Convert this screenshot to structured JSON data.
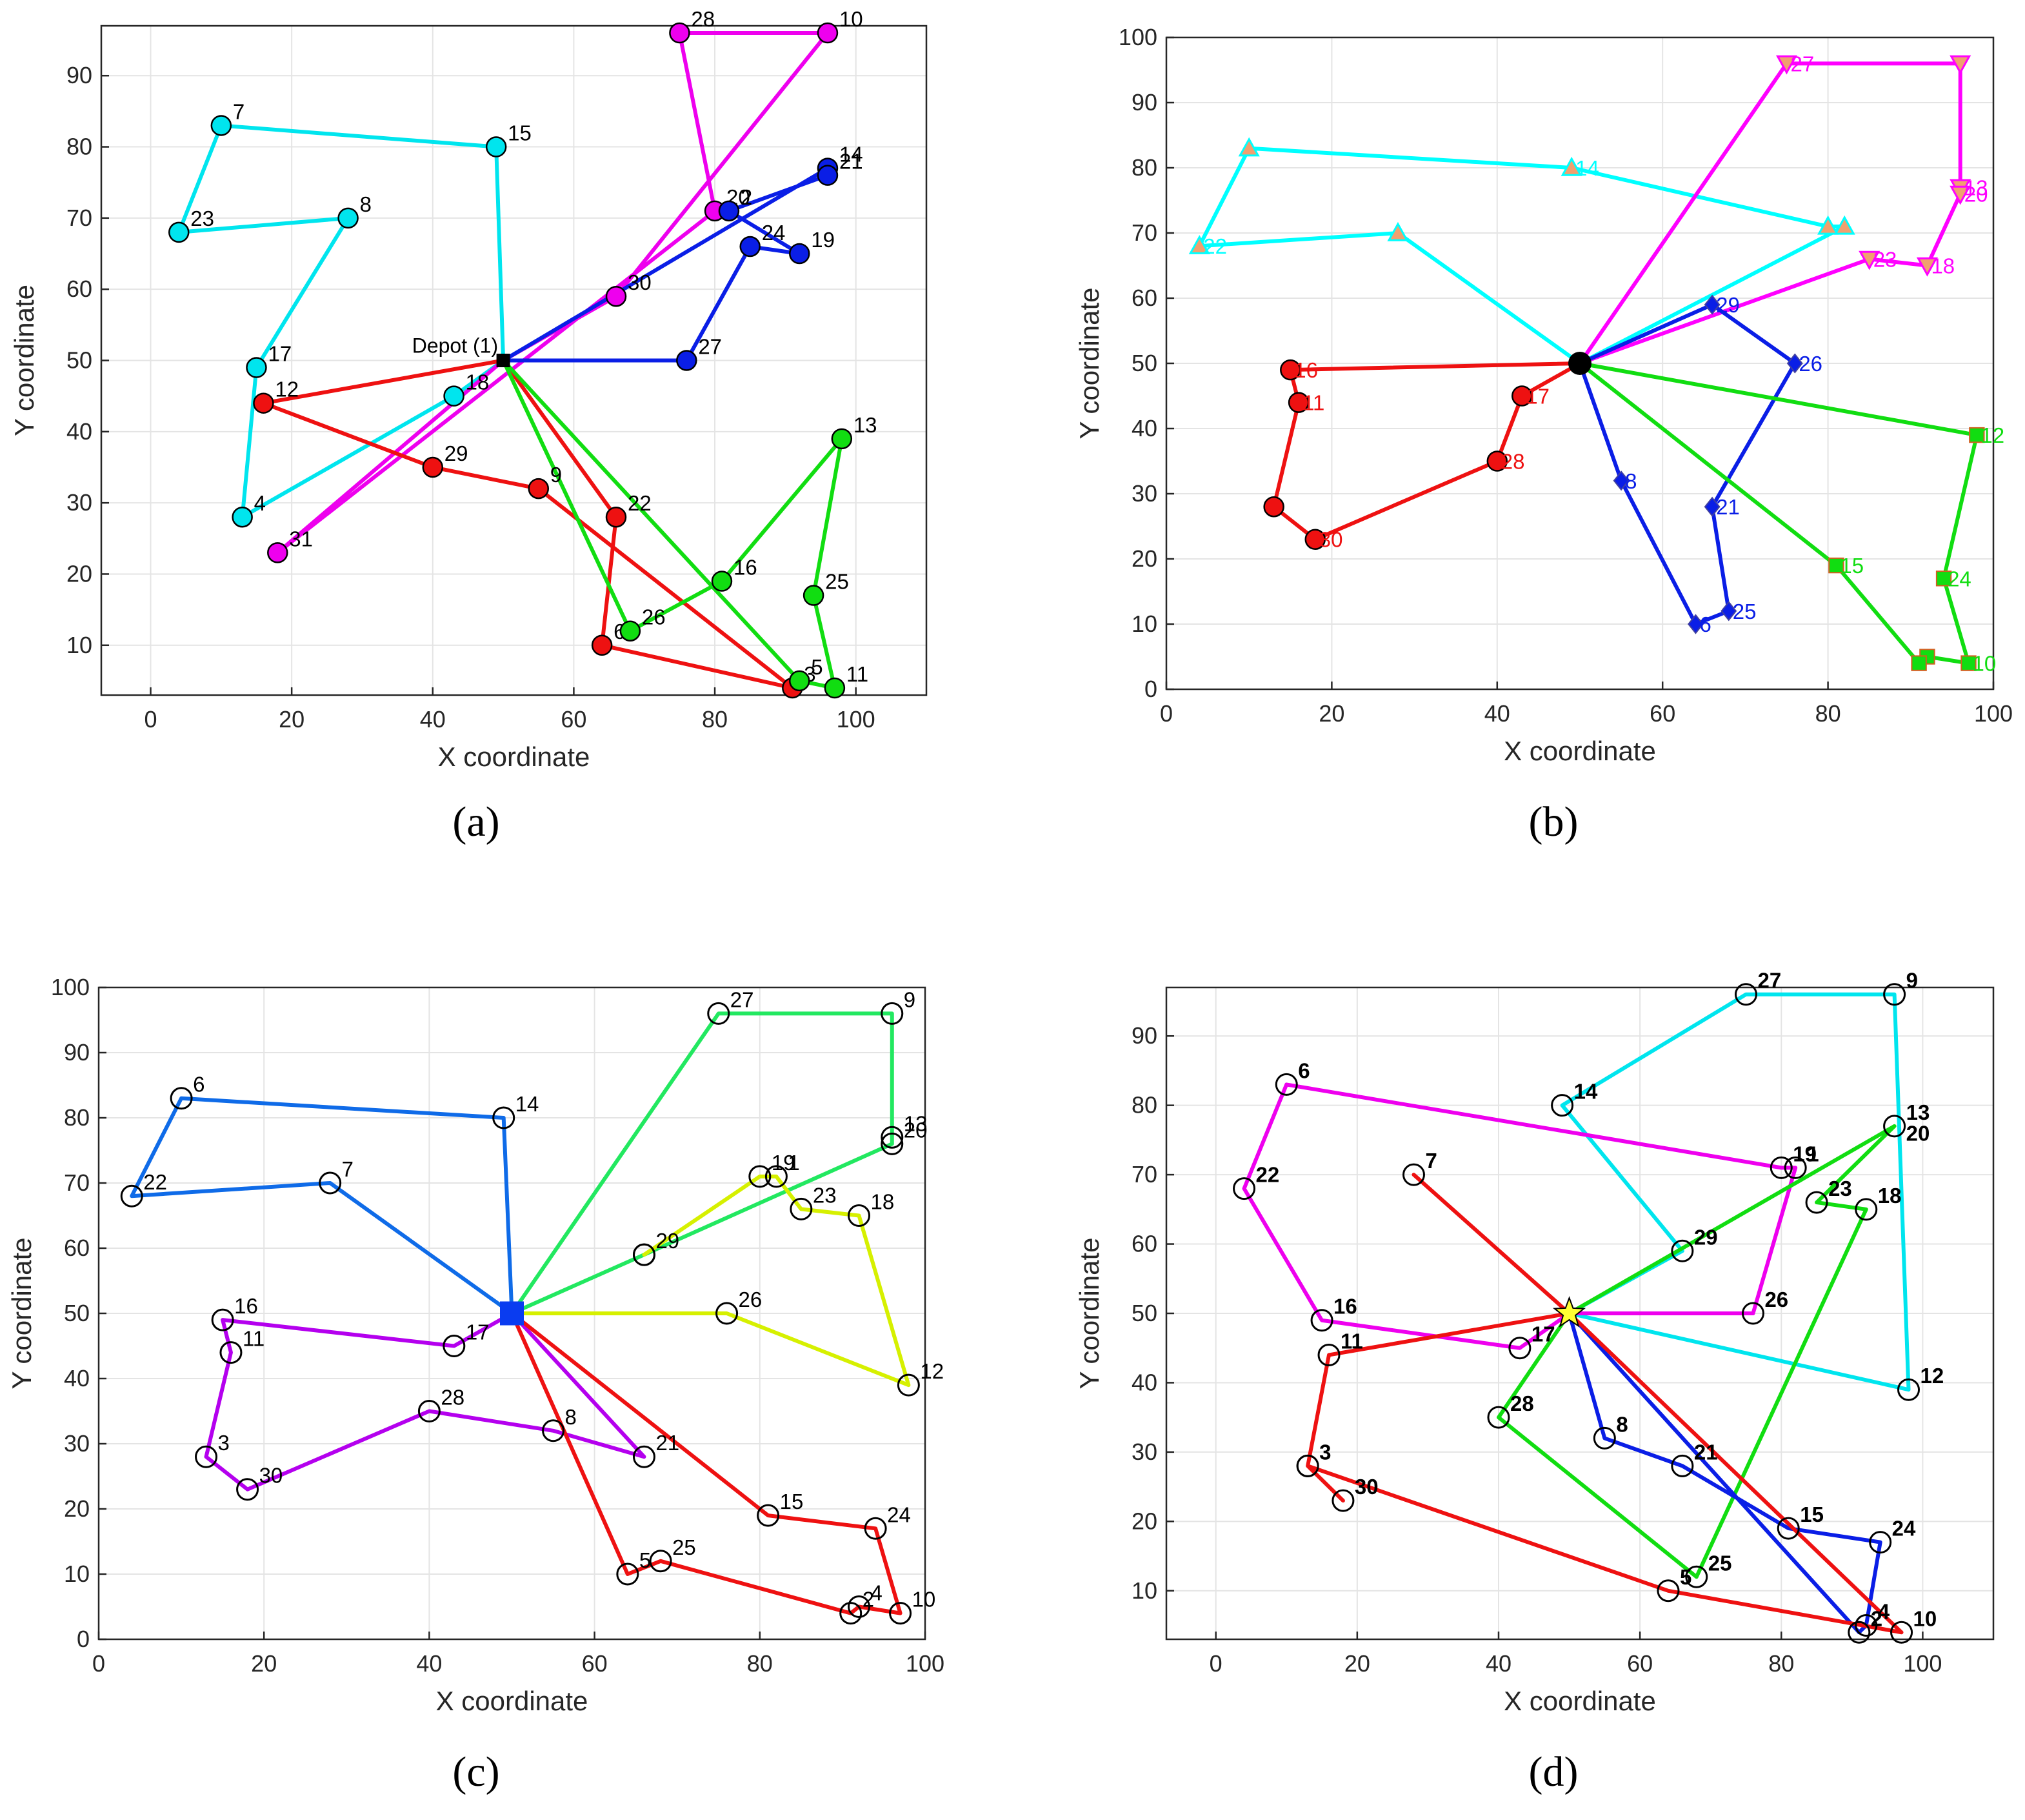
{
  "chart_data": [
    {
      "type": "line",
      "caption": "(a)",
      "xlabel": "X coordinate",
      "ylabel": "Y coordinate",
      "xlim": [
        -7,
        110
      ],
      "ylim": [
        3,
        97
      ],
      "xticks": [
        0,
        20,
        40,
        60,
        80,
        100
      ],
      "yticks": [
        10,
        20,
        30,
        40,
        50,
        60,
        70,
        80,
        90
      ],
      "grid": true,
      "marker": "circle",
      "depot": {
        "x": 50,
        "y": 50,
        "label": "Depot (1)",
        "marker": "square"
      },
      "routes": [
        {
          "color": "#00e5ee",
          "points": [
            [
              50,
              50
            ],
            [
              43,
              45
            ],
            [
              13,
              28
            ],
            [
              15,
              49
            ],
            [
              28,
              70
            ],
            [
              4,
              68
            ],
            [
              10,
              83
            ],
            [
              49,
              80
            ],
            [
              50,
              50
            ]
          ],
          "labels": [
            "",
            "18",
            "4",
            "17",
            "8",
            "23",
            "7",
            "15",
            ""
          ]
        },
        {
          "color": "#ee00ee",
          "points": [
            [
              50,
              50
            ],
            [
              66,
              59
            ],
            [
              96,
              96
            ],
            [
              75,
              96
            ],
            [
              80,
              71
            ],
            [
              18,
              23
            ],
            [
              50,
              50
            ]
          ],
          "labels": [
            "",
            "30",
            "10",
            "28",
            "20",
            "31",
            ""
          ]
        },
        {
          "color": "#0a1ee6",
          "points": [
            [
              50,
              50
            ],
            [
              96,
              77
            ],
            [
              96,
              76
            ],
            [
              82,
              71
            ],
            [
              92,
              65
            ],
            [
              85,
              66
            ],
            [
              76,
              50
            ],
            [
              50,
              50
            ]
          ],
          "labels": [
            "",
            "14",
            "21",
            "2",
            "19",
            "24",
            "27",
            ""
          ]
        },
        {
          "color": "#ee1111",
          "points": [
            [
              50,
              50
            ],
            [
              16,
              44
            ],
            [
              40,
              35
            ],
            [
              55,
              32
            ],
            [
              91,
              4
            ],
            [
              64,
              10
            ],
            [
              66,
              28
            ],
            [
              50,
              50
            ]
          ],
          "labels": [
            "",
            "12",
            "29",
            "9",
            "3",
            "6",
            "22",
            ""
          ]
        },
        {
          "color": "#11dd11",
          "points": [
            [
              50,
              50
            ],
            [
              92,
              5
            ],
            [
              97,
              4
            ],
            [
              94,
              17
            ],
            [
              98,
              39
            ],
            [
              81,
              19
            ],
            [
              68,
              12
            ],
            [
              50,
              50
            ]
          ],
          "labels": [
            "",
            "5",
            "11",
            "25",
            "13",
            "16",
            "26",
            ""
          ]
        }
      ]
    },
    {
      "type": "line",
      "caption": "(b)",
      "xlabel": "X coordinate",
      "ylabel": "Y coordinate",
      "xlim": [
        0,
        100
      ],
      "ylim": [
        0,
        100
      ],
      "xticks": [
        0,
        20,
        40,
        60,
        80,
        100
      ],
      "yticks": [
        0,
        10,
        20,
        30,
        40,
        50,
        60,
        70,
        80,
        90,
        100
      ],
      "grid": true,
      "depot": {
        "x": 50,
        "y": 50,
        "label": "",
        "marker": "circle"
      },
      "routes": [
        {
          "color": "#00ffff",
          "marker": "triangle",
          "points": [
            [
              50,
              50
            ],
            [
              82,
              71
            ],
            [
              80,
              71
            ],
            [
              49,
              80
            ],
            [
              10,
              83
            ],
            [
              4,
              68
            ],
            [
              28,
              70
            ],
            [
              50,
              50
            ]
          ],
          "labels": [
            "",
            "",
            "",
            "14",
            "",
            "22",
            "",
            ""
          ]
        },
        {
          "color": "#ff00ff",
          "marker": "down-triangle",
          "points": [
            [
              50,
              50
            ],
            [
              75,
              96
            ],
            [
              96,
              96
            ],
            [
              96,
              77
            ],
            [
              96,
              76
            ],
            [
              92,
              65
            ],
            [
              85,
              66
            ],
            [
              50,
              50
            ]
          ],
          "labels": [
            "",
            "27",
            "",
            "13",
            "20",
            "18",
            "23",
            ""
          ]
        },
        {
          "color": "#0a1ee6",
          "marker": "diamond",
          "points": [
            [
              50,
              50
            ],
            [
              66,
              59
            ],
            [
              76,
              50
            ],
            [
              66,
              28
            ],
            [
              68,
              12
            ],
            [
              64,
              10
            ],
            [
              55,
              32
            ],
            [
              50,
              50
            ]
          ],
          "labels": [
            "",
            "29",
            "26",
            "21",
            "25",
            "6",
            "8",
            ""
          ]
        },
        {
          "color": "#ee1111",
          "marker": "circle",
          "points": [
            [
              50,
              50
            ],
            [
              43,
              45
            ],
            [
              40,
              35
            ],
            [
              18,
              23
            ],
            [
              13,
              28
            ],
            [
              16,
              44
            ],
            [
              15,
              49
            ],
            [
              50,
              50
            ]
          ],
          "labels": [
            "",
            "17",
            "28",
            "30",
            "",
            "11",
            "16",
            ""
          ]
        },
        {
          "color": "#11dd11",
          "marker": "square",
          "points": [
            [
              50,
              50
            ],
            [
              98,
              39
            ],
            [
              94,
              17
            ],
            [
              97,
              4
            ],
            [
              92,
              5
            ],
            [
              91,
              4
            ],
            [
              81,
              19
            ],
            [
              50,
              50
            ]
          ],
          "labels": [
            "",
            "12",
            "24",
            "10",
            "",
            "",
            "15",
            ""
          ]
        }
      ]
    },
    {
      "type": "line",
      "caption": "(c)",
      "xlabel": "X coordinate",
      "ylabel": "Y coordinate",
      "xlim": [
        0,
        100
      ],
      "ylim": [
        0,
        100
      ],
      "xticks": [
        0,
        20,
        40,
        60,
        80,
        100
      ],
      "yticks": [
        0,
        10,
        20,
        30,
        40,
        50,
        60,
        70,
        80,
        90,
        100
      ],
      "grid": true,
      "marker": "open-circle",
      "depot": {
        "x": 50,
        "y": 50,
        "label": "",
        "marker": "square"
      },
      "routes": [
        {
          "color": "#0f6be8",
          "points": [
            [
              50,
              50
            ],
            [
              49,
              80
            ],
            [
              10,
              83
            ],
            [
              4,
              68
            ],
            [
              28,
              70
            ],
            [
              50,
              50
            ]
          ],
          "labels": [
            "",
            "14",
            "6",
            "22",
            "7",
            ""
          ]
        },
        {
          "color": "#22e860",
          "points": [
            [
              50,
              50
            ],
            [
              75,
              96
            ],
            [
              96,
              96
            ],
            [
              96,
              77
            ],
            [
              96,
              76
            ],
            [
              66,
              59
            ],
            [
              50,
              50
            ]
          ],
          "labels": [
            "",
            "27",
            "9",
            "13",
            "20",
            "29",
            ""
          ]
        },
        {
          "color": "#d6f000",
          "points": [
            [
              50,
              50
            ],
            [
              76,
              50
            ],
            [
              98,
              39
            ],
            [
              92,
              65
            ],
            [
              85,
              66
            ],
            [
              82,
              71
            ],
            [
              80,
              71
            ],
            [
              66,
              59
            ]
          ],
          "labels": [
            "",
            "26",
            "12",
            "18",
            "23",
            "1",
            "19",
            ""
          ]
        },
        {
          "color": "#b400ee",
          "points": [
            [
              50,
              50
            ],
            [
              43,
              45
            ],
            [
              15,
              49
            ],
            [
              16,
              44
            ],
            [
              13,
              28
            ],
            [
              18,
              23
            ],
            [
              40,
              35
            ],
            [
              55,
              32
            ],
            [
              66,
              28
            ],
            [
              50,
              50
            ]
          ],
          "labels": [
            "",
            "17",
            "16",
            "11",
            "3",
            "30",
            "28",
            "8",
            "21",
            ""
          ]
        },
        {
          "color": "#ee1111",
          "points": [
            [
              50,
              50
            ],
            [
              81,
              19
            ],
            [
              94,
              17
            ],
            [
              97,
              4
            ],
            [
              92,
              5
            ],
            [
              91,
              4
            ],
            [
              68,
              12
            ],
            [
              64,
              10
            ],
            [
              50,
              50
            ]
          ],
          "labels": [
            "",
            "15",
            "24",
            "10",
            "4",
            "2",
            "25",
            "5",
            ""
          ]
        }
      ]
    },
    {
      "type": "line",
      "caption": "(d)",
      "xlabel": "X coordinate",
      "ylabel": "Y coordinate",
      "xlim": [
        -7,
        110
      ],
      "ylim": [
        3,
        97
      ],
      "xticks": [
        0,
        20,
        40,
        60,
        80,
        100
      ],
      "yticks": [
        10,
        20,
        30,
        40,
        50,
        60,
        70,
        80,
        90
      ],
      "grid": true,
      "marker": "open-circle",
      "depot": {
        "x": 50,
        "y": 50,
        "label": "",
        "marker": "star"
      },
      "routes": [
        {
          "color": "#00e5ee",
          "points": [
            [
              50,
              50
            ],
            [
              66,
              59
            ],
            [
              49,
              80
            ],
            [
              75,
              96
            ],
            [
              96,
              96
            ],
            [
              98,
              39
            ],
            [
              50,
              50
            ]
          ],
          "labels": [
            "",
            "29",
            "14",
            "27",
            "9",
            "12",
            ""
          ]
        },
        {
          "color": "#ee00ee",
          "points": [
            [
              50,
              50
            ],
            [
              76,
              50
            ],
            [
              82,
              71
            ],
            [
              80,
              71
            ],
            [
              10,
              83
            ],
            [
              4,
              68
            ],
            [
              15,
              49
            ],
            [
              43,
              45
            ],
            [
              50,
              50
            ]
          ],
          "labels": [
            "",
            "26",
            "1",
            "19",
            "6",
            "22",
            "16",
            "17",
            ""
          ]
        },
        {
          "color": "#11dd11",
          "points": [
            [
              50,
              50
            ],
            [
              96,
              77
            ],
            [
              85,
              66
            ],
            [
              92,
              65
            ],
            [
              68,
              12
            ],
            [
              40,
              35
            ],
            [
              50,
              50
            ]
          ],
          "labels": [
            "",
            "13",
            "23",
            "18",
            "25",
            "28",
            ""
          ]
        },
        {
          "color": "#0a1ee6",
          "points": [
            [
              50,
              50
            ],
            [
              55,
              32
            ],
            [
              66,
              28
            ],
            [
              81,
              19
            ],
            [
              94,
              17
            ],
            [
              92,
              5
            ],
            [
              91,
              4
            ],
            [
              50,
              50
            ]
          ],
          "labels": [
            "",
            "8",
            "21",
            "15",
            "24",
            "4",
            "2",
            ""
          ]
        },
        {
          "color": "#ee1111",
          "points": [
            [
              50,
              50
            ],
            [
              28,
              70
            ],
            [
              50,
              50
            ],
            [
              16,
              44
            ],
            [
              13,
              28
            ],
            [
              18,
              23
            ],
            [
              13,
              28
            ],
            [
              64,
              10
            ],
            [
              97,
              4
            ],
            [
              50,
              50
            ]
          ],
          "labels": [
            "",
            "7",
            "",
            "11",
            "3",
            "30",
            "",
            "5",
            "10",
            ""
          ]
        }
      ],
      "extra_labels": [
        {
          "x": 96,
          "y": 76,
          "text": "20"
        }
      ]
    }
  ]
}
